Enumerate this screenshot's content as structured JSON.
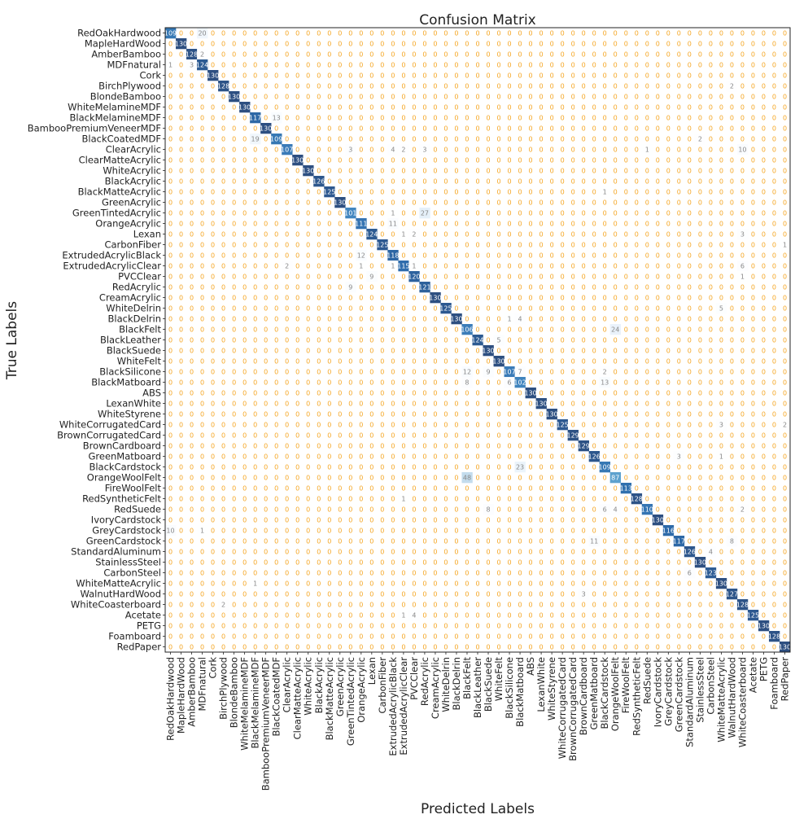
{
  "chart_data": {
    "type": "heatmap",
    "title": "Confusion Matrix",
    "xlabel": "Predicted Labels",
    "ylabel": "True Labels",
    "labels": [
      "RedOakHardwood",
      "MapleHardWood",
      "AmberBamboo",
      "MDFnatural",
      "Cork",
      "BirchPlywood",
      "BlondeBamboo",
      "WhiteMelamineMDF",
      "BlackMelamineMDF",
      "BambooPremiumVeneerMDF",
      "BlackCoatedMDF",
      "ClearAcrylic",
      "ClearMatteAcrylic",
      "WhiteAcrylic",
      "BlackAcrylic",
      "BlackMatteAcrylic",
      "GreenAcrylic",
      "GreenTintedAcrylic",
      "OrangeAcrylic",
      "Lexan",
      "CarbonFiber",
      "ExtrudedAcrylicBlack",
      "ExtrudedAcrylicClear",
      "PVCClear",
      "RedAcrylic",
      "CreamAcrylic",
      "WhiteDelrin",
      "BlackDelrin",
      "BlackFelt",
      "BlackLeather",
      "BlackSuede",
      "WhiteFelt",
      "BlackSilicone",
      "BlackMatboard",
      "ABS",
      "LexanWhite",
      "WhiteStyrene",
      "WhiteCorrugatedCard",
      "BrownCorrugatedCard",
      "BrownCardboard",
      "GreenMatboard",
      "BlackCardstock",
      "OrangeWoolFelt",
      "FireWoolFelt",
      "RedSyntheticFelt",
      "RedSuede",
      "IvoryCardstock",
      "GreyCardstock",
      "GreenCardstock",
      "StandardAluminum",
      "StainlessSteel",
      "CarbonSteel",
      "WhiteMatteAcrylic",
      "WalnutHardWood",
      "WhiteCoasterboard",
      "Acetate",
      "PETG",
      "Foamboard",
      "RedPaper"
    ],
    "diagonal": [
      109,
      130,
      128,
      124,
      130,
      128,
      130,
      130,
      117,
      130,
      109,
      107,
      130,
      130,
      126,
      125,
      130,
      101,
      111,
      124,
      125,
      118,
      115,
      120,
      121,
      130,
      125,
      130,
      106,
      124,
      130,
      130,
      107,
      102,
      130,
      130,
      130,
      125,
      129,
      129,
      126,
      109,
      87,
      113,
      128,
      110,
      130,
      116,
      117,
      126,
      130,
      123,
      130,
      127,
      128,
      125,
      130,
      128,
      130
    ],
    "off_diagonal": [
      {
        "row": 0,
        "col": 3,
        "value": 20
      },
      {
        "row": 2,
        "col": 3,
        "value": 2
      },
      {
        "row": 3,
        "col": 0,
        "value": 1
      },
      {
        "row": 3,
        "col": 2,
        "value": 3
      },
      {
        "row": 5,
        "col": 53,
        "value": 2
      },
      {
        "row": 8,
        "col": 10,
        "value": 13
      },
      {
        "row": 10,
        "col": 8,
        "value": 19
      },
      {
        "row": 10,
        "col": 50,
        "value": 2
      },
      {
        "row": 11,
        "col": 17,
        "value": 3
      },
      {
        "row": 11,
        "col": 21,
        "value": 4
      },
      {
        "row": 11,
        "col": 22,
        "value": 2
      },
      {
        "row": 11,
        "col": 24,
        "value": 3
      },
      {
        "row": 11,
        "col": 45,
        "value": 1
      },
      {
        "row": 11,
        "col": 54,
        "value": 10
      },
      {
        "row": 15,
        "col": 41,
        "value": 1
      },
      {
        "row": 17,
        "col": 21,
        "value": 1
      },
      {
        "row": 17,
        "col": 24,
        "value": 27
      },
      {
        "row": 18,
        "col": 21,
        "value": 11
      },
      {
        "row": 19,
        "col": 22,
        "value": 1
      },
      {
        "row": 19,
        "col": 23,
        "value": 2
      },
      {
        "row": 19,
        "col": 54,
        "value": 3
      },
      {
        "row": 20,
        "col": 58,
        "value": 1
      },
      {
        "row": 21,
        "col": 18,
        "value": 12
      },
      {
        "row": 22,
        "col": 11,
        "value": 2
      },
      {
        "row": 22,
        "col": 18,
        "value": 1
      },
      {
        "row": 22,
        "col": 21,
        "value": 1
      },
      {
        "row": 22,
        "col": 23,
        "value": 1
      },
      {
        "row": 22,
        "col": 54,
        "value": 6
      },
      {
        "row": 23,
        "col": 19,
        "value": 9
      },
      {
        "row": 23,
        "col": 54,
        "value": 1
      },
      {
        "row": 24,
        "col": 17,
        "value": 9
      },
      {
        "row": 26,
        "col": 52,
        "value": 5
      },
      {
        "row": 27,
        "col": 32,
        "value": 1
      },
      {
        "row": 27,
        "col": 33,
        "value": 4
      },
      {
        "row": 28,
        "col": 42,
        "value": 24
      },
      {
        "row": 29,
        "col": 31,
        "value": 5
      },
      {
        "row": 32,
        "col": 28,
        "value": 12
      },
      {
        "row": 32,
        "col": 30,
        "value": 9
      },
      {
        "row": 32,
        "col": 33,
        "value": 7
      },
      {
        "row": 32,
        "col": 41,
        "value": 2
      },
      {
        "row": 33,
        "col": 28,
        "value": 8
      },
      {
        "row": 33,
        "col": 32,
        "value": 6
      },
      {
        "row": 33,
        "col": 41,
        "value": 13
      },
      {
        "row": 37,
        "col": 52,
        "value": 3
      },
      {
        "row": 37,
        "col": 58,
        "value": 2
      },
      {
        "row": 40,
        "col": 48,
        "value": 3
      },
      {
        "row": 40,
        "col": 52,
        "value": 1
      },
      {
        "row": 41,
        "col": 33,
        "value": 23
      },
      {
        "row": 42,
        "col": 28,
        "value": 48
      },
      {
        "row": 44,
        "col": 22,
        "value": 1
      },
      {
        "row": 45,
        "col": 30,
        "value": 8
      },
      {
        "row": 45,
        "col": 41,
        "value": 6
      },
      {
        "row": 45,
        "col": 42,
        "value": 4
      },
      {
        "row": 45,
        "col": 54,
        "value": 2
      },
      {
        "row": 47,
        "col": 0,
        "value": 10
      },
      {
        "row": 47,
        "col": 3,
        "value": 1
      },
      {
        "row": 48,
        "col": 40,
        "value": 11
      },
      {
        "row": 48,
        "col": 53,
        "value": 8
      },
      {
        "row": 49,
        "col": 51,
        "value": 4
      },
      {
        "row": 51,
        "col": 49,
        "value": 6
      },
      {
        "row": 52,
        "col": 8,
        "value": 1
      },
      {
        "row": 53,
        "col": 39,
        "value": 3
      },
      {
        "row": 54,
        "col": 5,
        "value": 2
      },
      {
        "row": 55,
        "col": 22,
        "value": 1
      },
      {
        "row": 55,
        "col": 23,
        "value": 4
      }
    ],
    "vmin": 0,
    "vmax": 130,
    "colormap": [
      "#ffffff",
      "#f7fbff",
      "#deebf7",
      "#c6dbef",
      "#9ecae1",
      "#6baed6",
      "#4292c6",
      "#2171b5",
      "#08519c",
      "#08306b"
    ],
    "cell_alpha": 0.85,
    "zero_text_color": "#f5a623",
    "value_text_color_light": "#ffffff",
    "value_text_color_dark": "#888888",
    "grid": false,
    "legend": "none"
  }
}
